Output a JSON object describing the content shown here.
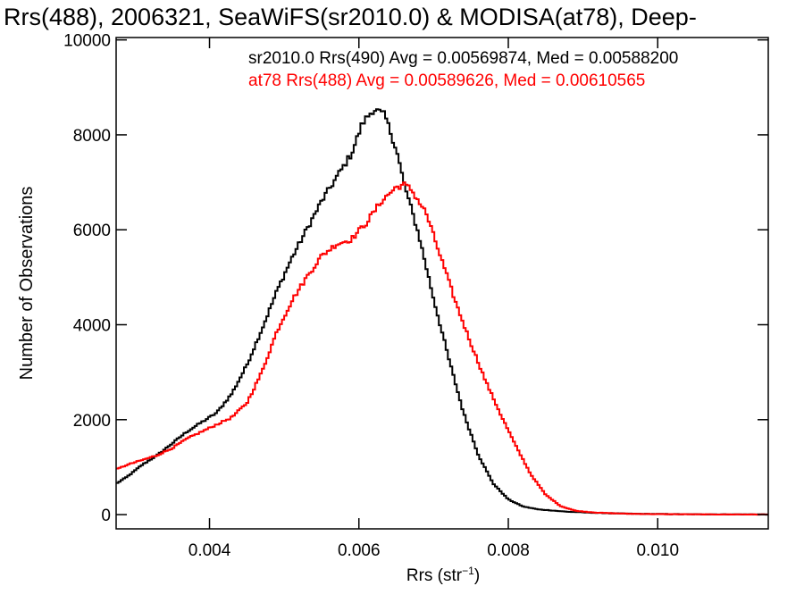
{
  "chart_data": {
    "type": "line",
    "title": "Rrs(488), 2006321, SeaWiFS(sr2010.0) & MODISA(at78), Deep-",
    "xlabel_main": "Rrs (str",
    "xlabel_sup": "−1",
    "xlabel_close": ")",
    "ylabel": "Number of Observations",
    "xlim": [
      0.00275,
      0.01148
    ],
    "ylim": [
      -300,
      10050
    ],
    "x_ticks": [
      0.004,
      0.006,
      0.008,
      0.01
    ],
    "x_tick_labels": [
      "0.004",
      "0.006",
      "0.008",
      "0.010"
    ],
    "y_ticks": [
      0,
      2000,
      4000,
      6000,
      8000,
      10000
    ],
    "y_tick_labels": [
      "0",
      "2000",
      "4000",
      "6000",
      "8000",
      "10000"
    ],
    "grid": false,
    "legend_position": "top-right",
    "series": [
      {
        "name": "sr2010.0 Rrs(490) Avg = 0.00569874, Med = 0.00588200",
        "color": "#000000",
        "points": [
          [
            0.00275,
            650
          ],
          [
            0.0029,
            800
          ],
          [
            0.0031,
            1050
          ],
          [
            0.0033,
            1250
          ],
          [
            0.0035,
            1500
          ],
          [
            0.0037,
            1750
          ],
          [
            0.0039,
            1950
          ],
          [
            0.0041,
            2150
          ],
          [
            0.0043,
            2550
          ],
          [
            0.0045,
            3150
          ],
          [
            0.0047,
            3900
          ],
          [
            0.0049,
            4700
          ],
          [
            0.0051,
            5400
          ],
          [
            0.0053,
            6000
          ],
          [
            0.0055,
            6600
          ],
          [
            0.0057,
            7100
          ],
          [
            0.0059,
            7600
          ],
          [
            0.00605,
            8250
          ],
          [
            0.0062,
            8550
          ],
          [
            0.00635,
            8400
          ],
          [
            0.0065,
            7700
          ],
          [
            0.0066,
            7000
          ],
          [
            0.0068,
            5900
          ],
          [
            0.007,
            4550
          ],
          [
            0.0072,
            3300
          ],
          [
            0.0074,
            2150
          ],
          [
            0.0076,
            1250
          ],
          [
            0.0078,
            650
          ],
          [
            0.008,
            320
          ],
          [
            0.0082,
            170
          ],
          [
            0.0084,
            110
          ],
          [
            0.0088,
            60
          ],
          [
            0.0092,
            35
          ],
          [
            0.0096,
            20
          ],
          [
            0.01,
            12
          ],
          [
            0.0106,
            6
          ],
          [
            0.01148,
            3
          ]
        ]
      },
      {
        "name": "at78 Rrs(488) Avg = 0.00589626, Med = 0.00610565",
        "color": "#ff0000",
        "points": [
          [
            0.00275,
            950
          ],
          [
            0.0029,
            1050
          ],
          [
            0.0031,
            1150
          ],
          [
            0.0033,
            1250
          ],
          [
            0.0035,
            1400
          ],
          [
            0.0037,
            1600
          ],
          [
            0.0039,
            1750
          ],
          [
            0.0041,
            1900
          ],
          [
            0.0043,
            2050
          ],
          [
            0.0045,
            2350
          ],
          [
            0.0047,
            3000
          ],
          [
            0.0049,
            3850
          ],
          [
            0.0051,
            4500
          ],
          [
            0.0053,
            5000
          ],
          [
            0.0055,
            5450
          ],
          [
            0.0057,
            5700
          ],
          [
            0.0059,
            5800
          ],
          [
            0.0061,
            6150
          ],
          [
            0.0063,
            6600
          ],
          [
            0.0065,
            6900
          ],
          [
            0.0066,
            6950
          ],
          [
            0.0067,
            6850
          ],
          [
            0.0069,
            6350
          ],
          [
            0.0071,
            5400
          ],
          [
            0.0073,
            4450
          ],
          [
            0.0075,
            3600
          ],
          [
            0.0077,
            2800
          ],
          [
            0.0079,
            2100
          ],
          [
            0.0081,
            1450
          ],
          [
            0.0083,
            850
          ],
          [
            0.0085,
            420
          ],
          [
            0.0087,
            180
          ],
          [
            0.0089,
            80
          ],
          [
            0.0092,
            40
          ],
          [
            0.0096,
            18
          ],
          [
            0.01,
            10
          ],
          [
            0.0106,
            5
          ],
          [
            0.01148,
            2
          ]
        ]
      }
    ]
  }
}
